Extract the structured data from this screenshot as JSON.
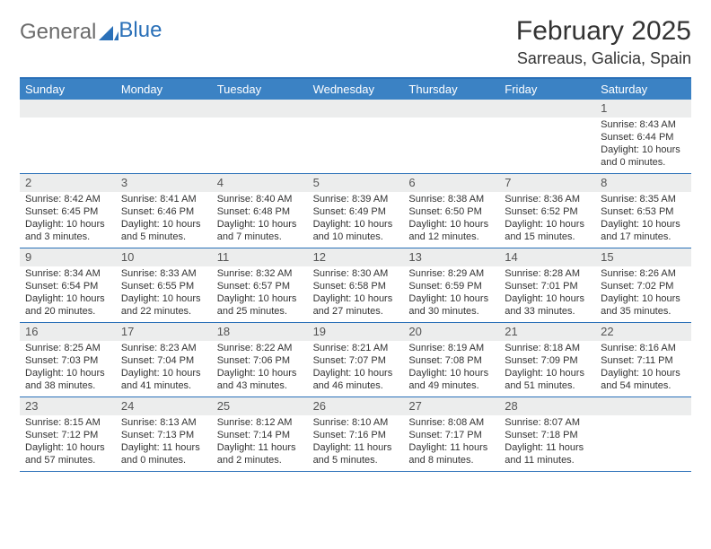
{
  "logo": {
    "first": "General",
    "second": "Blue"
  },
  "title": "February 2025",
  "location": "Sarreaus, Galicia, Spain",
  "colors": {
    "header_bar": "#3b82c4",
    "border": "#2a70b8",
    "daynum_bg": "#eceded",
    "text": "#333333",
    "logo_gray": "#6b6b6b",
    "logo_blue": "#2a70b8",
    "bg": "#ffffff"
  },
  "daynames": [
    "Sunday",
    "Monday",
    "Tuesday",
    "Wednesday",
    "Thursday",
    "Friday",
    "Saturday"
  ],
  "weeks": [
    [
      {
        "n": "",
        "sr": "",
        "ss": "",
        "dl": ""
      },
      {
        "n": "",
        "sr": "",
        "ss": "",
        "dl": ""
      },
      {
        "n": "",
        "sr": "",
        "ss": "",
        "dl": ""
      },
      {
        "n": "",
        "sr": "",
        "ss": "",
        "dl": ""
      },
      {
        "n": "",
        "sr": "",
        "ss": "",
        "dl": ""
      },
      {
        "n": "",
        "sr": "",
        "ss": "",
        "dl": ""
      },
      {
        "n": "1",
        "sr": "Sunrise: 8:43 AM",
        "ss": "Sunset: 6:44 PM",
        "dl": "Daylight: 10 hours and 0 minutes."
      }
    ],
    [
      {
        "n": "2",
        "sr": "Sunrise: 8:42 AM",
        "ss": "Sunset: 6:45 PM",
        "dl": "Daylight: 10 hours and 3 minutes."
      },
      {
        "n": "3",
        "sr": "Sunrise: 8:41 AM",
        "ss": "Sunset: 6:46 PM",
        "dl": "Daylight: 10 hours and 5 minutes."
      },
      {
        "n": "4",
        "sr": "Sunrise: 8:40 AM",
        "ss": "Sunset: 6:48 PM",
        "dl": "Daylight: 10 hours and 7 minutes."
      },
      {
        "n": "5",
        "sr": "Sunrise: 8:39 AM",
        "ss": "Sunset: 6:49 PM",
        "dl": "Daylight: 10 hours and 10 minutes."
      },
      {
        "n": "6",
        "sr": "Sunrise: 8:38 AM",
        "ss": "Sunset: 6:50 PM",
        "dl": "Daylight: 10 hours and 12 minutes."
      },
      {
        "n": "7",
        "sr": "Sunrise: 8:36 AM",
        "ss": "Sunset: 6:52 PM",
        "dl": "Daylight: 10 hours and 15 minutes."
      },
      {
        "n": "8",
        "sr": "Sunrise: 8:35 AM",
        "ss": "Sunset: 6:53 PM",
        "dl": "Daylight: 10 hours and 17 minutes."
      }
    ],
    [
      {
        "n": "9",
        "sr": "Sunrise: 8:34 AM",
        "ss": "Sunset: 6:54 PM",
        "dl": "Daylight: 10 hours and 20 minutes."
      },
      {
        "n": "10",
        "sr": "Sunrise: 8:33 AM",
        "ss": "Sunset: 6:55 PM",
        "dl": "Daylight: 10 hours and 22 minutes."
      },
      {
        "n": "11",
        "sr": "Sunrise: 8:32 AM",
        "ss": "Sunset: 6:57 PM",
        "dl": "Daylight: 10 hours and 25 minutes."
      },
      {
        "n": "12",
        "sr": "Sunrise: 8:30 AM",
        "ss": "Sunset: 6:58 PM",
        "dl": "Daylight: 10 hours and 27 minutes."
      },
      {
        "n": "13",
        "sr": "Sunrise: 8:29 AM",
        "ss": "Sunset: 6:59 PM",
        "dl": "Daylight: 10 hours and 30 minutes."
      },
      {
        "n": "14",
        "sr": "Sunrise: 8:28 AM",
        "ss": "Sunset: 7:01 PM",
        "dl": "Daylight: 10 hours and 33 minutes."
      },
      {
        "n": "15",
        "sr": "Sunrise: 8:26 AM",
        "ss": "Sunset: 7:02 PM",
        "dl": "Daylight: 10 hours and 35 minutes."
      }
    ],
    [
      {
        "n": "16",
        "sr": "Sunrise: 8:25 AM",
        "ss": "Sunset: 7:03 PM",
        "dl": "Daylight: 10 hours and 38 minutes."
      },
      {
        "n": "17",
        "sr": "Sunrise: 8:23 AM",
        "ss": "Sunset: 7:04 PM",
        "dl": "Daylight: 10 hours and 41 minutes."
      },
      {
        "n": "18",
        "sr": "Sunrise: 8:22 AM",
        "ss": "Sunset: 7:06 PM",
        "dl": "Daylight: 10 hours and 43 minutes."
      },
      {
        "n": "19",
        "sr": "Sunrise: 8:21 AM",
        "ss": "Sunset: 7:07 PM",
        "dl": "Daylight: 10 hours and 46 minutes."
      },
      {
        "n": "20",
        "sr": "Sunrise: 8:19 AM",
        "ss": "Sunset: 7:08 PM",
        "dl": "Daylight: 10 hours and 49 minutes."
      },
      {
        "n": "21",
        "sr": "Sunrise: 8:18 AM",
        "ss": "Sunset: 7:09 PM",
        "dl": "Daylight: 10 hours and 51 minutes."
      },
      {
        "n": "22",
        "sr": "Sunrise: 8:16 AM",
        "ss": "Sunset: 7:11 PM",
        "dl": "Daylight: 10 hours and 54 minutes."
      }
    ],
    [
      {
        "n": "23",
        "sr": "Sunrise: 8:15 AM",
        "ss": "Sunset: 7:12 PM",
        "dl": "Daylight: 10 hours and 57 minutes."
      },
      {
        "n": "24",
        "sr": "Sunrise: 8:13 AM",
        "ss": "Sunset: 7:13 PM",
        "dl": "Daylight: 11 hours and 0 minutes."
      },
      {
        "n": "25",
        "sr": "Sunrise: 8:12 AM",
        "ss": "Sunset: 7:14 PM",
        "dl": "Daylight: 11 hours and 2 minutes."
      },
      {
        "n": "26",
        "sr": "Sunrise: 8:10 AM",
        "ss": "Sunset: 7:16 PM",
        "dl": "Daylight: 11 hours and 5 minutes."
      },
      {
        "n": "27",
        "sr": "Sunrise: 8:08 AM",
        "ss": "Sunset: 7:17 PM",
        "dl": "Daylight: 11 hours and 8 minutes."
      },
      {
        "n": "28",
        "sr": "Sunrise: 8:07 AM",
        "ss": "Sunset: 7:18 PM",
        "dl": "Daylight: 11 hours and 11 minutes."
      },
      {
        "n": "",
        "sr": "",
        "ss": "",
        "dl": ""
      }
    ]
  ]
}
